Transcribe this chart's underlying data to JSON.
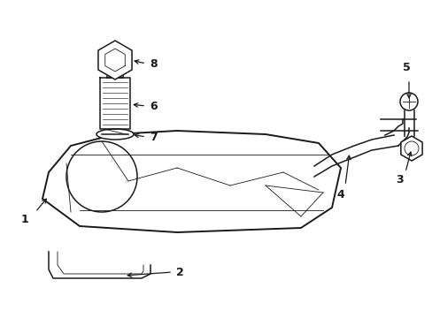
{
  "bg_color": "#ffffff",
  "line_color": "#1a1a1a",
  "fig_width": 4.89,
  "fig_height": 3.6,
  "dpi": 100,
  "tank_color": "#ffffff",
  "lw_main": 1.1,
  "lw_thin": 0.6,
  "lw_thick": 1.4
}
